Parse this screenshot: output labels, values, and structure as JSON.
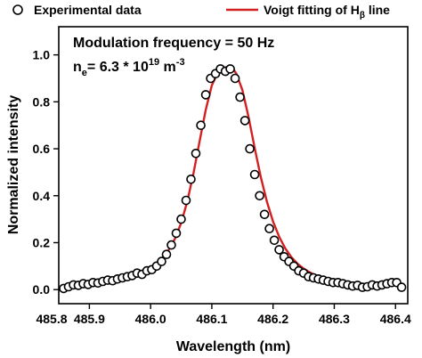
{
  "chart_data": {
    "type": "scatter",
    "xlabel": "Wavelength (nm)",
    "ylabel": "Normalized intensity",
    "xlim": [
      485.85,
      486.42
    ],
    "ylim": [
      -0.06,
      1.12
    ],
    "xticks": [
      485.8,
      485.9,
      486.0,
      486.1,
      486.2,
      486.3,
      486.4
    ],
    "yticks": [
      0.0,
      0.2,
      0.4,
      0.6,
      0.8,
      1.0
    ],
    "xtick_labels": [
      "485.8",
      "485.9",
      "486.0",
      "486.1",
      "486.2",
      "486.3",
      "486.4"
    ],
    "ytick_labels": [
      "0.0",
      "0.2",
      "0.4",
      "0.6",
      "0.8",
      "1.0"
    ],
    "legend_position": "top",
    "legend": {
      "scatter_label": "Experimental data",
      "fit_label_prefix": "Voigt fitting of H",
      "fit_label_sub": "β",
      "fit_label_suffix": " line"
    },
    "annotations": {
      "line1": "Modulation frequency = 50 Hz",
      "line2_n": "n",
      "line2_sub": "e",
      "line2_main": "= 6.3 * 10",
      "line2_exp": "19",
      "line2_unit": " m",
      "line2_unit_exp": "-3"
    },
    "colors": {
      "fit": "#d42020",
      "points": "#000000"
    },
    "series": [
      {
        "name": "Experimental data",
        "kind": "points",
        "x": [
          485.858,
          485.866,
          485.874,
          485.882,
          485.89,
          485.898,
          485.906,
          485.914,
          485.922,
          485.93,
          485.938,
          485.946,
          485.954,
          485.962,
          485.97,
          485.978,
          485.986,
          485.994,
          486.002,
          486.01,
          486.018,
          486.026,
          486.034,
          486.042,
          486.05,
          486.058,
          486.066,
          486.074,
          486.082,
          486.09,
          486.098,
          486.106,
          486.114,
          486.122,
          486.13,
          486.138,
          486.146,
          486.154,
          486.162,
          486.17,
          486.178,
          486.186,
          486.194,
          486.202,
          486.21,
          486.218,
          486.226,
          486.234,
          486.242,
          486.25,
          486.258,
          486.266,
          486.274,
          486.282,
          486.29,
          486.298,
          486.306,
          486.314,
          486.322,
          486.33,
          486.338,
          486.346,
          486.354,
          486.362,
          486.37,
          486.378,
          486.386,
          486.394,
          486.402,
          486.41
        ],
        "y": [
          0.005,
          0.012,
          0.02,
          0.018,
          0.025,
          0.022,
          0.03,
          0.028,
          0.035,
          0.04,
          0.038,
          0.045,
          0.05,
          0.055,
          0.06,
          0.07,
          0.065,
          0.08,
          0.085,
          0.1,
          0.12,
          0.15,
          0.19,
          0.24,
          0.3,
          0.38,
          0.47,
          0.58,
          0.7,
          0.83,
          0.9,
          0.92,
          0.94,
          0.93,
          0.94,
          0.9,
          0.82,
          0.72,
          0.6,
          0.49,
          0.4,
          0.32,
          0.26,
          0.21,
          0.17,
          0.14,
          0.12,
          0.1,
          0.08,
          0.07,
          0.055,
          0.05,
          0.045,
          0.04,
          0.035,
          0.03,
          0.03,
          0.025,
          0.02,
          0.015,
          0.018,
          0.01,
          0.012,
          0.02,
          0.015,
          0.02,
          0.025,
          0.03,
          0.03,
          0.01
        ]
      },
      {
        "name": "Voigt fitting of Hβ line",
        "kind": "line",
        "x": [
          485.858,
          485.87,
          485.88,
          485.89,
          485.9,
          485.91,
          485.92,
          485.93,
          485.94,
          485.95,
          485.96,
          485.97,
          485.98,
          485.99,
          486.0,
          486.01,
          486.02,
          486.03,
          486.04,
          486.05,
          486.06,
          486.07,
          486.08,
          486.09,
          486.1,
          486.11,
          486.12,
          486.125,
          486.13,
          486.135,
          486.14,
          486.15,
          486.16,
          486.17,
          486.18,
          486.19,
          486.2,
          486.21,
          486.22,
          486.23,
          486.24,
          486.25,
          486.26,
          486.27,
          486.28,
          486.29,
          486.3,
          486.31,
          486.32,
          486.33,
          486.34,
          486.35,
          486.36,
          486.37,
          486.38,
          486.39,
          486.4,
          486.41
        ],
        "y": [
          0.018,
          0.02,
          0.022,
          0.024,
          0.027,
          0.03,
          0.033,
          0.037,
          0.041,
          0.046,
          0.052,
          0.059,
          0.068,
          0.079,
          0.093,
          0.112,
          0.137,
          0.171,
          0.218,
          0.284,
          0.376,
          0.495,
          0.632,
          0.766,
          0.87,
          0.925,
          0.945,
          0.948,
          0.947,
          0.94,
          0.92,
          0.85,
          0.735,
          0.603,
          0.48,
          0.375,
          0.29,
          0.225,
          0.175,
          0.138,
          0.11,
          0.089,
          0.073,
          0.061,
          0.052,
          0.045,
          0.04,
          0.035,
          0.031,
          0.028,
          0.026,
          0.024,
          0.022,
          0.02,
          0.019,
          0.018,
          0.017,
          0.016
        ]
      }
    ]
  }
}
